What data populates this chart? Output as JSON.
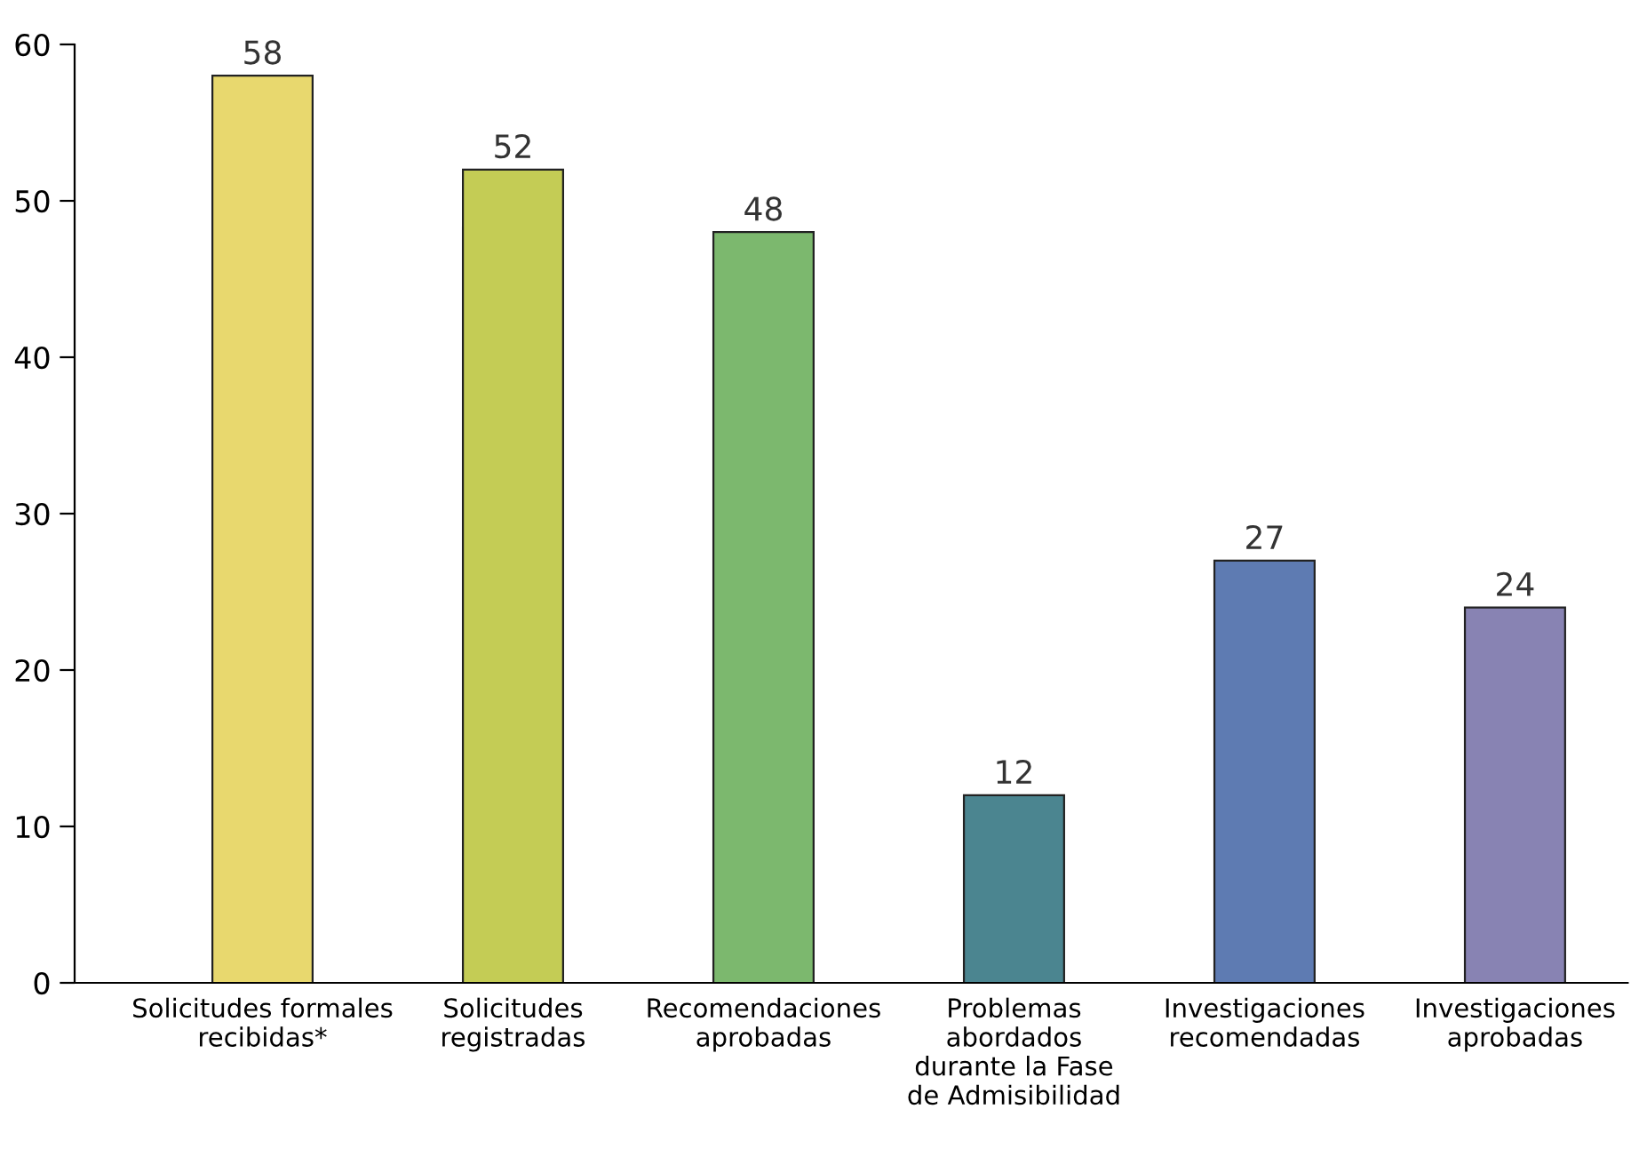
{
  "chart_data": {
    "type": "bar",
    "categories": [
      "Solicitudes formales\nrecibidas*",
      "Solicitudes\nregistradas",
      "Recomendaciones\naprobadas",
      "Problemas\nabordados\ndurante la Fase\nde Admisibilidad",
      "Investigaciones\nrecomendadas",
      "Investigaciones\naprobadas"
    ],
    "values": [
      58,
      52,
      48,
      12,
      27,
      24
    ],
    "colors": [
      "#e8d86e",
      "#c4cc55",
      "#7cb86e",
      "#4b8590",
      "#5e7bb2",
      "#8883b3"
    ],
    "ylim": [
      0,
      60
    ],
    "yticks": [
      0,
      10,
      20,
      30,
      40,
      50,
      60
    ],
    "data_labels": true,
    "grid": false,
    "legend": false
  }
}
